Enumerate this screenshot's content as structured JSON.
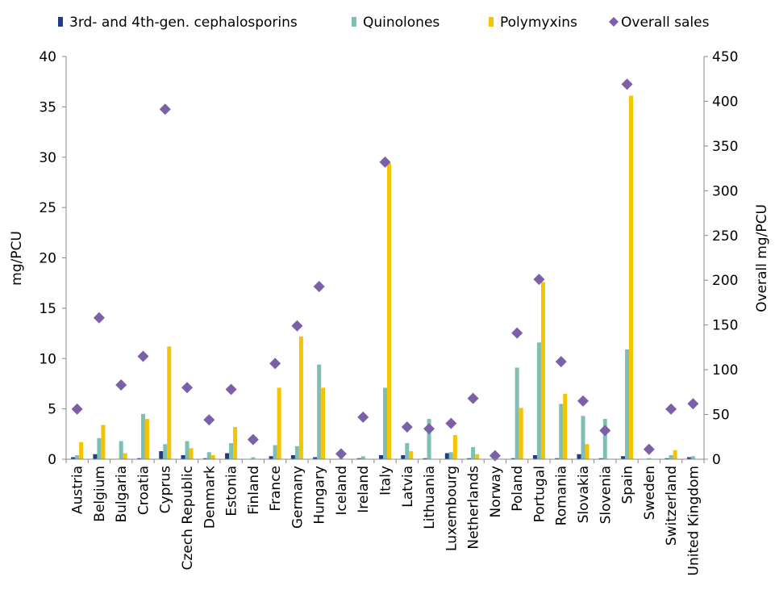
{
  "chart_data": {
    "type": "bar",
    "ylabel": "mg/PCU",
    "y2label": "Overall mg/PCU",
    "ylim": [
      0,
      40
    ],
    "y2lim": [
      0,
      450
    ],
    "yticks": [
      "0",
      "5",
      "10",
      "15",
      "20",
      "25",
      "30",
      "35",
      "40"
    ],
    "y2ticks": [
      "0",
      "50",
      "100",
      "150",
      "200",
      "250",
      "300",
      "350",
      "400",
      "450"
    ],
    "grid": false,
    "legend_position": "top",
    "categories": [
      "Austria",
      "Belgium",
      "Bulgaria",
      "Croatia",
      "Cyprus",
      "Czech Republic",
      "Denmark",
      "Estonia",
      "Finland",
      "France",
      "Germany",
      "Hungary",
      "Iceland",
      "Ireland",
      "Italy",
      "Latvia",
      "Lithuania",
      "Luxembourg",
      "Netherlands",
      "Norway",
      "Poland",
      "Portugal",
      "Romania",
      "Slovakia",
      "Slovenia",
      "Spain",
      "Sweden",
      "Switzerland",
      "United Kingdom"
    ],
    "series": [
      {
        "name": "3rd- and 4th-gen. cephalosporins",
        "color": "#1f3c8c",
        "kind": "bar",
        "axis": "left",
        "values": [
          0.2,
          0.5,
          0.0,
          0.1,
          0.8,
          0.4,
          0.1,
          0.6,
          0.0,
          0.3,
          0.4,
          0.2,
          0.0,
          0.1,
          0.4,
          0.4,
          0.1,
          0.6,
          0.1,
          0.0,
          0.1,
          0.4,
          0.1,
          0.5,
          0.1,
          0.3,
          0.0,
          0.1,
          0.2
        ]
      },
      {
        "name": "Quinolones",
        "color": "#7fbfb3",
        "kind": "bar",
        "axis": "left",
        "values": [
          0.4,
          2.1,
          1.8,
          4.5,
          1.5,
          1.8,
          0.7,
          1.6,
          0.2,
          1.4,
          1.3,
          9.4,
          0.1,
          0.3,
          7.1,
          1.6,
          4.0,
          0.7,
          1.2,
          0.1,
          9.1,
          11.6,
          5.5,
          4.3,
          4.0,
          10.9,
          0.1,
          0.4,
          0.3
        ]
      },
      {
        "name": "Polymyxins",
        "color": "#f5c400",
        "kind": "bar",
        "axis": "left",
        "values": [
          1.7,
          3.4,
          0.6,
          4.0,
          11.2,
          1.1,
          0.4,
          3.2,
          0.0,
          7.1,
          12.2,
          7.1,
          0.0,
          0.0,
          29.4,
          0.8,
          0.0,
          2.4,
          0.5,
          0.0,
          5.1,
          17.6,
          6.5,
          1.5,
          0.0,
          36.1,
          0.0,
          0.9,
          0.0
        ]
      },
      {
        "name": "Overall sales",
        "color": "#7b5fa8",
        "kind": "marker",
        "axis": "right",
        "values": [
          56,
          158,
          83,
          115,
          391,
          80,
          44,
          78,
          22,
          107,
          149,
          193,
          6,
          47,
          332,
          36,
          34,
          40,
          68,
          4,
          141,
          201,
          109,
          65,
          32,
          419,
          11,
          56,
          62
        ]
      }
    ]
  }
}
